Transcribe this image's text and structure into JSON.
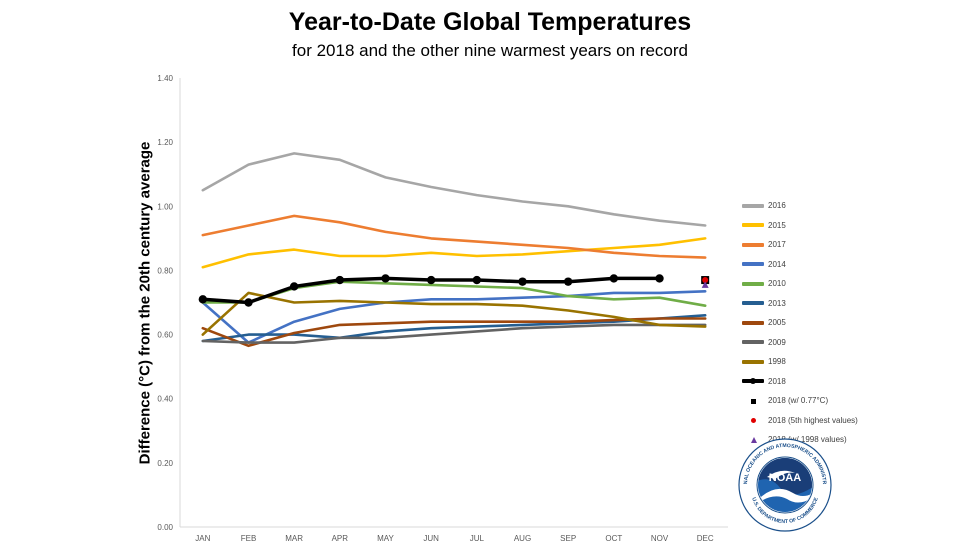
{
  "header": {
    "title": "Year-to-Date Global Temperatures",
    "subtitle": "for 2018 and the other nine warmest years on record"
  },
  "logo": {
    "text": "NOAA",
    "ring_text": "NATIONAL OCEANIC AND ATMOSPHERIC ADMINISTRATION",
    "bottom_text": "U.S. DEPARTMENT OF COMMERCE"
  },
  "chart_data": {
    "type": "line",
    "title": "Year-to-Date Global Temperatures",
    "subtitle": "for 2018 and the other nine warmest years on record",
    "xlabel": "",
    "ylabel": "Difference (°C) from the 20th century average",
    "ylim": [
      0,
      1.4
    ],
    "yticks": [
      "0.00",
      "0.20",
      "0.40",
      "0.60",
      "0.80",
      "1.00",
      "1.20",
      "1.40"
    ],
    "grid": false,
    "legend_position": "right",
    "categories": [
      "JAN",
      "FEB",
      "MAR",
      "APR",
      "MAY",
      "JUN",
      "JUL",
      "AUG",
      "SEP",
      "OCT",
      "NOV",
      "DEC"
    ],
    "series": [
      {
        "name": "2016",
        "color": "#a6a6a6",
        "values": [
          1.05,
          1.13,
          1.165,
          1.145,
          1.09,
          1.06,
          1.035,
          1.015,
          1.0,
          0.975,
          0.955,
          0.94
        ]
      },
      {
        "name": "2015",
        "color": "#ffc000",
        "values": [
          0.81,
          0.85,
          0.865,
          0.845,
          0.845,
          0.855,
          0.845,
          0.85,
          0.86,
          0.87,
          0.88,
          0.9
        ]
      },
      {
        "name": "2017",
        "color": "#ed7d31",
        "values": [
          0.91,
          0.94,
          0.97,
          0.95,
          0.92,
          0.9,
          0.89,
          0.88,
          0.87,
          0.855,
          0.845,
          0.84
        ]
      },
      {
        "name": "2014",
        "color": "#4472c4",
        "values": [
          0.7,
          0.575,
          0.64,
          0.68,
          0.7,
          0.71,
          0.71,
          0.715,
          0.72,
          0.73,
          0.73,
          0.735
        ]
      },
      {
        "name": "2010",
        "color": "#70ad47",
        "values": [
          0.7,
          0.7,
          0.745,
          0.765,
          0.76,
          0.755,
          0.75,
          0.745,
          0.72,
          0.71,
          0.715,
          0.69
        ]
      },
      {
        "name": "2013",
        "color": "#255e91",
        "values": [
          0.58,
          0.6,
          0.6,
          0.59,
          0.61,
          0.62,
          0.625,
          0.63,
          0.635,
          0.64,
          0.65,
          0.66
        ]
      },
      {
        "name": "2005",
        "color": "#9e480e",
        "values": [
          0.62,
          0.565,
          0.605,
          0.63,
          0.635,
          0.64,
          0.64,
          0.64,
          0.64,
          0.645,
          0.65,
          0.65
        ]
      },
      {
        "name": "2009",
        "color": "#636363",
        "values": [
          0.58,
          0.575,
          0.575,
          0.59,
          0.59,
          0.6,
          0.61,
          0.62,
          0.625,
          0.63,
          0.63,
          0.63
        ]
      },
      {
        "name": "1998",
        "color": "#997300",
        "values": [
          0.6,
          0.73,
          0.7,
          0.705,
          0.7,
          0.695,
          0.695,
          0.69,
          0.675,
          0.655,
          0.63,
          0.625
        ]
      },
      {
        "name": "2018",
        "color": "#000000",
        "markers": true,
        "values": [
          0.71,
          0.7,
          0.75,
          0.77,
          0.775,
          0.77,
          0.77,
          0.765,
          0.765,
          0.775,
          0.775,
          null
        ]
      }
    ],
    "points": [
      {
        "name": "2018 (w/ 0.77°C)",
        "x": "DEC",
        "y": 0.77,
        "marker": "square",
        "color": "#000000"
      },
      {
        "name": "2018 (5th highest values)",
        "x": "DEC",
        "y": 0.77,
        "marker": "circle",
        "color": "#e00000"
      },
      {
        "name": "2018 (w/ 1998 values)",
        "x": "DEC",
        "y": 0.755,
        "marker": "triangle",
        "color": "#6a3aa0"
      }
    ]
  }
}
